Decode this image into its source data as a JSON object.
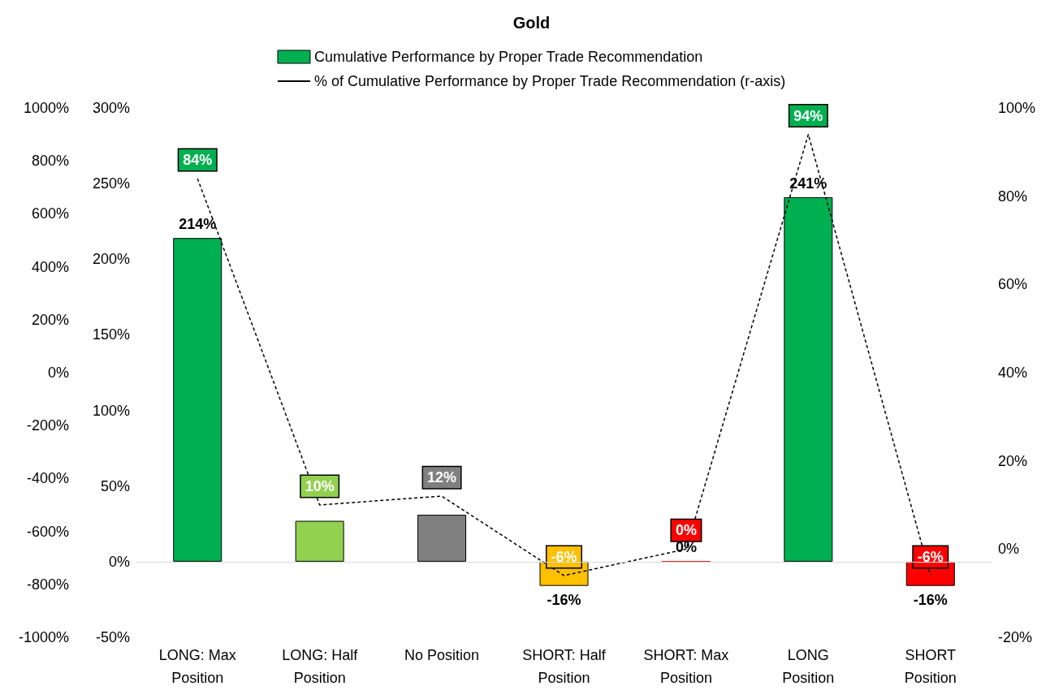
{
  "chart_data": {
    "type": "bar",
    "title": "Gold",
    "categories": [
      "LONG: Max\nPosition",
      "LONG: Half\nPosition",
      "No Position",
      "SHORT: Half\nPosition",
      "SHORT: Max\nPosition",
      "LONG\nPosition",
      "SHORT\nPosition"
    ],
    "series": [
      {
        "name": "Cumulative Performance by Proper Trade Recommendation",
        "colors": [
          "#00b050",
          "#92d050",
          "#808080",
          "#ffc000",
          "#ff0000",
          "#00b050",
          "#ff0000"
        ],
        "values": [
          214,
          27,
          31,
          -16,
          0,
          241,
          -16
        ],
        "value_labels": [
          "214%",
          null,
          null,
          "-16%",
          "0%",
          "241%",
          "-16%"
        ]
      },
      {
        "name": "% of Cumulative Performance by Proper Trade Recommendation (r-axis)",
        "type": "line",
        "axis": "y2",
        "color": "#000000",
        "line_style": "dashed",
        "marker": "none",
        "values": [
          84,
          10,
          12,
          -6,
          0,
          94,
          -6
        ],
        "value_labels": [
          "84%",
          "10%",
          "12%",
          "-6%",
          "0%",
          "94%",
          "-6%"
        ]
      }
    ],
    "ylim": [
      -50,
      300
    ],
    "yticks": [
      {
        "value": -50,
        "label": "-50%"
      },
      {
        "value": 0,
        "label": "0%"
      },
      {
        "value": 50,
        "label": "50%"
      },
      {
        "value": 100,
        "label": "100%"
      },
      {
        "value": 150,
        "label": "150%"
      },
      {
        "value": 200,
        "label": "200%"
      },
      {
        "value": 250,
        "label": "250%"
      },
      {
        "value": 300,
        "label": "300%"
      }
    ],
    "y2lim": [
      -20,
      100
    ],
    "y2ticks": [
      {
        "value": -20,
        "label": "-20%"
      },
      {
        "value": 0,
        "label": "0%"
      },
      {
        "value": 20,
        "label": "20%"
      },
      {
        "value": 40,
        "label": "40%"
      },
      {
        "value": 60,
        "label": "60%"
      },
      {
        "value": 80,
        "label": "80%"
      },
      {
        "value": 100,
        "label": "100%"
      }
    ],
    "y3lim": [
      -1000,
      1000
    ],
    "y3ticks": [
      {
        "value": -1000,
        "label": "-1000%"
      },
      {
        "value": -800,
        "label": "-800%"
      },
      {
        "value": -600,
        "label": "-600%"
      },
      {
        "value": -400,
        "label": "-400%"
      },
      {
        "value": -200,
        "label": "-200%"
      },
      {
        "value": 0,
        "label": "0%"
      },
      {
        "value": 200,
        "label": "200%"
      },
      {
        "value": 400,
        "label": "400%"
      },
      {
        "value": 600,
        "label": "600%"
      },
      {
        "value": 800,
        "label": "800%"
      },
      {
        "value": 1000,
        "label": "1000%"
      }
    ],
    "ref_lines": [
      {
        "axis": "y",
        "value": 0,
        "color": "#d9d9d9"
      }
    ],
    "grid": false,
    "legend": "top"
  }
}
